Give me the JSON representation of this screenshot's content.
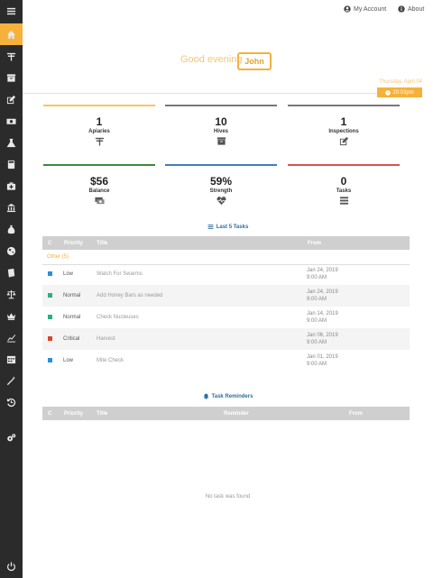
{
  "topbar": {
    "account_label": "My Account",
    "about_label": "About"
  },
  "greeting": {
    "text": "Good evening",
    "user": "John"
  },
  "date": {
    "text": "Thursday, April 04",
    "time": "20:03pm"
  },
  "stats": [
    {
      "value": "1",
      "label": "Apiaries",
      "icon": "apiary-icon",
      "color": "#f6c65b"
    },
    {
      "value": "10",
      "label": "Hives",
      "icon": "hive-icon",
      "color": "#777777"
    },
    {
      "value": "1",
      "label": "Inspections",
      "icon": "inspection-icon",
      "color": "#777777"
    },
    {
      "value": "$56",
      "label": "Balance",
      "icon": "money-icon",
      "color": "#3a8a3a"
    },
    {
      "value": "59%",
      "label": "Strength",
      "icon": "heartbeat-icon",
      "color": "#3a7fc2"
    },
    {
      "value": "0",
      "label": "Tasks",
      "icon": "tasks-icon",
      "color": "#d9534f"
    }
  ],
  "last_tasks": {
    "title": "Last 5 Tasks",
    "headers": {
      "c": "C",
      "priority": "Priority",
      "title": "Title",
      "from": "From"
    },
    "group": "Other (5)",
    "rows": [
      {
        "color": "#2e8fd6",
        "priority": "Low",
        "title": "Watch For Swarms",
        "date": "Jan 24, 2019",
        "time": "9:00 AM"
      },
      {
        "color": "#2ab07f",
        "priority": "Normal",
        "title": "Add Honey Bars as needed",
        "date": "Jan 24, 2019",
        "time": "9:00 AM"
      },
      {
        "color": "#2ab07f",
        "priority": "Normal",
        "title": "Check Nucleuses",
        "date": "Jan 14, 2019",
        "time": "9:00 AM"
      },
      {
        "color": "#d9432f",
        "priority": "Critical",
        "title": "Harvest",
        "date": "Jan 06, 2019",
        "time": "9:00 AM"
      },
      {
        "color": "#2e8fd6",
        "priority": "Low",
        "title": "Mite Check",
        "date": "Jan 01, 2019",
        "time": "9:00 AM"
      }
    ]
  },
  "reminders": {
    "title": "Task Reminders",
    "headers": {
      "c": "C",
      "priority": "Priority",
      "title": "Title",
      "reminder": "Reminder",
      "from": "From"
    },
    "empty": "No task was found"
  },
  "sidebar": {
    "items": [
      "menu-icon",
      "home-icon",
      "apiary-icon",
      "hive-icon",
      "edit-icon",
      "money-icon",
      "flask-icon",
      "calculator-icon",
      "medkit-icon",
      "bank-icon",
      "sack-icon",
      "globe-icon",
      "book-icon",
      "balance-scale-icon",
      "crown-icon",
      "chart-icon",
      "calendar-icon",
      "magic-wand-icon",
      "history-icon",
      "settings-icon",
      "power-icon"
    ]
  }
}
